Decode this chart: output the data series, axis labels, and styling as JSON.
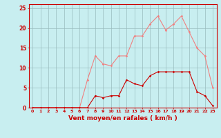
{
  "hours": [
    0,
    1,
    2,
    3,
    4,
    5,
    6,
    7,
    8,
    9,
    10,
    11,
    12,
    13,
    14,
    15,
    16,
    17,
    18,
    19,
    20,
    21,
    22,
    23
  ],
  "rafales": [
    0,
    0,
    0,
    0,
    0,
    0,
    0,
    7,
    13,
    11,
    10.5,
    13,
    13,
    18,
    18,
    21,
    23,
    19.5,
    21,
    23,
    19,
    15,
    13,
    5
  ],
  "moyen": [
    0,
    0,
    0,
    0,
    0,
    0,
    0,
    0,
    3,
    2.5,
    3,
    3,
    7,
    6,
    5.5,
    8,
    9,
    9,
    9,
    9,
    9,
    4,
    3,
    0.5
  ],
  "color_rafales": "#F08080",
  "color_moyen": "#CC0000",
  "bg_color": "#C8EEF0",
  "grid_color": "#9ABCBE",
  "xlabel": "Vent moyen/en rafales ( km/h )",
  "ylim": [
    0,
    26
  ],
  "xlim": [
    -0.5,
    23.5
  ],
  "yticks": [
    0,
    5,
    10,
    15,
    20,
    25
  ],
  "xticks": [
    0,
    1,
    2,
    3,
    4,
    5,
    6,
    7,
    8,
    9,
    10,
    11,
    12,
    13,
    14,
    15,
    16,
    17,
    18,
    19,
    20,
    21,
    22,
    23
  ]
}
